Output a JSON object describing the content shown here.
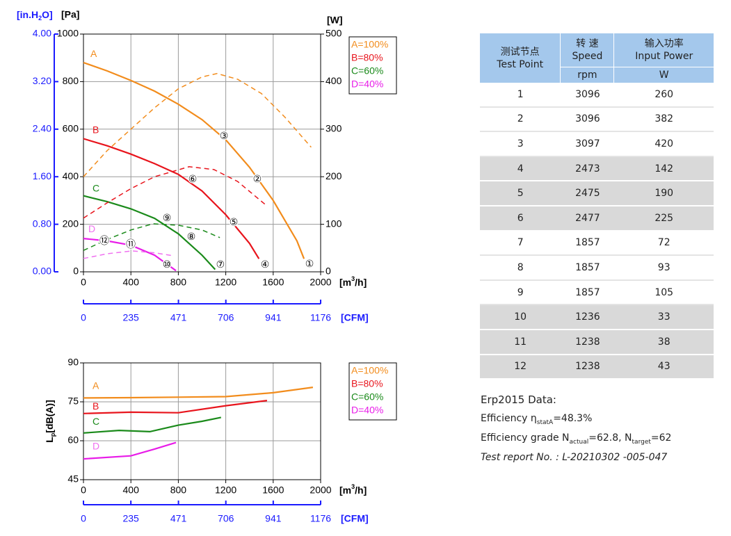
{
  "chart_data": [
    {
      "type": "line",
      "xlim": [
        0,
        2000
      ],
      "xticks": [
        0,
        400,
        800,
        1200,
        1600,
        2000
      ],
      "x_label": {
        "pre": "[m",
        "sup": "3",
        "post": "/h]"
      },
      "x2lim": [
        0,
        1176
      ],
      "x2ticks": [
        0,
        235,
        471,
        706,
        941,
        1176
      ],
      "x2_label": "[CFM]",
      "ylim": [
        0,
        1000
      ],
      "yticks": [
        0,
        200,
        400,
        600,
        800,
        1000
      ],
      "y_label": "[Pa]",
      "y_alt_lim": [
        0,
        4
      ],
      "y_alt_ticks": [
        {
          "value": 0,
          "label": "0.00"
        },
        {
          "value": 0.8,
          "label": "0.80"
        },
        {
          "value": 1.6,
          "label": "1.60"
        },
        {
          "value": 2.4,
          "label": "2.40"
        },
        {
          "value": 3.2,
          "label": "3.20"
        },
        {
          "value": 4,
          "label": "4.00"
        }
      ],
      "y_alt_label": {
        "pre": "[in.H",
        "sub": "2",
        "post": "O]"
      },
      "y2lim": [
        0,
        500
      ],
      "y2ticks": [
        0,
        100,
        200,
        300,
        400,
        500
      ],
      "y2_label": "[W]",
      "grid": true,
      "legend": "outside-right",
      "series": [
        {
          "name": "A=100%",
          "color": "#f28c1c",
          "x": [
            0,
            200,
            400,
            600,
            800,
            1000,
            1200,
            1400,
            1600,
            1800,
            1860
          ],
          "values": [
            880,
            845,
            805,
            760,
            705,
            640,
            555,
            440,
            300,
            130,
            55
          ]
        },
        {
          "name": "B=80%",
          "color": "#e8141c",
          "x": [
            0,
            200,
            400,
            600,
            800,
            1000,
            1200,
            1400,
            1480
          ],
          "values": [
            560,
            530,
            495,
            455,
            410,
            340,
            240,
            120,
            55
          ]
        },
        {
          "name": "C=60%",
          "color": "#1a8a1a",
          "x": [
            0,
            200,
            400,
            600,
            800,
            1000,
            1110
          ],
          "values": [
            320,
            295,
            265,
            225,
            160,
            70,
            10
          ]
        },
        {
          "name": "D=40%",
          "color": "#e81ce8",
          "x": [
            0,
            200,
            400,
            600,
            780
          ],
          "values": [
            140,
            130,
            112,
            70,
            5
          ]
        },
        {
          "color": "#f28c1c",
          "axis": "y2",
          "dashed": true,
          "x": [
            0,
            200,
            400,
            600,
            800,
            1000,
            1126,
            1300,
            1500,
            1700,
            1920
          ],
          "values": [
            200,
            255,
            300,
            345,
            385,
            410,
            417,
            405,
            375,
            325,
            262
          ]
        },
        {
          "color": "#e8141c",
          "axis": "y2",
          "dashed": true,
          "x": [
            0,
            200,
            400,
            600,
            891,
            1100,
            1300,
            1540
          ],
          "values": [
            113,
            145,
            175,
            200,
            221,
            215,
            190,
            140
          ]
        },
        {
          "color": "#1a8a1a",
          "axis": "y2",
          "dashed": true,
          "x": [
            0,
            200,
            400,
            587,
            800,
            1000,
            1150
          ],
          "values": [
            45,
            68,
            88,
            101,
            98,
            88,
            72
          ]
        },
        {
          "color": "#f070f0",
          "axis": "y2",
          "dashed": true,
          "x": [
            0,
            200,
            410,
            600,
            750
          ],
          "values": [
            28,
            38,
            44,
            40,
            34
          ]
        }
      ],
      "curve_labels": [
        {
          "text": "A",
          "color": "#f28c1c",
          "x": 59,
          "y": 915
        },
        {
          "text": "B",
          "color": "#e8141c",
          "x": 76,
          "y": 594
        },
        {
          "text": "C",
          "color": "#1a8a1a",
          "x": 76,
          "y": 348
        },
        {
          "text": "D",
          "color": "#f070f0",
          "x": 41,
          "y": 178
        }
      ],
      "annotations": [
        {
          "text": "①",
          "x": 1906,
          "y": 32
        },
        {
          "text": "②",
          "x": 1466,
          "y": 389
        },
        {
          "text": "③",
          "x": 1185,
          "y": 570
        },
        {
          "text": "④",
          "x": 1531,
          "y": 29
        },
        {
          "text": "⑤",
          "x": 1267,
          "y": 208
        },
        {
          "text": "⑥",
          "x": 921,
          "y": 389
        },
        {
          "text": "⑦",
          "x": 1155,
          "y": 29
        },
        {
          "text": "⑧",
          "x": 909,
          "y": 146
        },
        {
          "text": "⑨",
          "x": 704,
          "y": 225
        },
        {
          "text": "⑩",
          "x": 704,
          "y": 29
        },
        {
          "text": "⑪",
          "x": 399,
          "y": 114
        },
        {
          "text": "⑫",
          "x": 176,
          "y": 129
        }
      ]
    },
    {
      "type": "line",
      "xlim": [
        0,
        2000
      ],
      "xticks": [
        0,
        400,
        800,
        1200,
        1600,
        2000
      ],
      "x_label": {
        "pre": "[m",
        "sup": "3",
        "post": "/h]"
      },
      "x2lim": [
        0,
        1176
      ],
      "x2ticks": [
        0,
        235,
        471,
        706,
        941,
        1176
      ],
      "x2_label": "[CFM]",
      "ylim": [
        45,
        90
      ],
      "yticks": [
        45,
        60,
        75,
        90
      ],
      "y_label": {
        "pre": "L",
        "sub": "p",
        "post": "[dB(A)]"
      },
      "grid": true,
      "legend": "outside-right",
      "series": [
        {
          "name": "A=100%",
          "color": "#f28c1c",
          "x": [
            0,
            400,
            800,
            1200,
            1600,
            1935
          ],
          "values": [
            76.5,
            76.6,
            76.8,
            77,
            78.5,
            80.6
          ]
        },
        {
          "name": "B=80%",
          "color": "#e8141c",
          "x": [
            0,
            400,
            800,
            1200,
            1548
          ],
          "values": [
            70.5,
            71,
            70.8,
            73.5,
            75.5
          ]
        },
        {
          "name": "C=60%",
          "color": "#1a8a1a",
          "x": [
            0,
            300,
            560,
            800,
            1000,
            1160
          ],
          "values": [
            63,
            64,
            63.5,
            66,
            67.5,
            69
          ]
        },
        {
          "name": "D=40%",
          "color": "#e81ce8",
          "x": [
            0,
            400,
            600,
            780
          ],
          "values": [
            53,
            54.2,
            56.8,
            59.3
          ]
        }
      ],
      "curve_labels": [
        {
          "text": "A",
          "color": "#f28c1c",
          "x": 76,
          "y": 80.9
        },
        {
          "text": "B",
          "color": "#e8141c",
          "x": 76,
          "y": 73.1
        },
        {
          "text": "C",
          "color": "#1a8a1a",
          "x": 76,
          "y": 67.2
        },
        {
          "text": "D",
          "color": "#f070f0",
          "x": 76,
          "y": 57.6
        }
      ]
    }
  ],
  "table": {
    "header": {
      "point": [
        "测试节点",
        "Test Point"
      ],
      "speed": [
        "转 速",
        "Speed",
        "rpm"
      ],
      "power": [
        "输入功率",
        "Input Power",
        "W"
      ]
    },
    "rows": [
      [
        1,
        3096,
        260
      ],
      [
        2,
        3096,
        382
      ],
      [
        3,
        3097,
        420
      ],
      [
        4,
        2473,
        142
      ],
      [
        5,
        2475,
        190
      ],
      [
        6,
        2477,
        225
      ],
      [
        7,
        1857,
        72
      ],
      [
        8,
        1857,
        93
      ],
      [
        9,
        1857,
        105
      ],
      [
        10,
        1236,
        33
      ],
      [
        11,
        1238,
        38
      ],
      [
        12,
        1238,
        43
      ]
    ]
  },
  "erp": {
    "title": "Erp2015  Data:",
    "efficiency": {
      "pre": "Efficiency η",
      "sub": "statA",
      "post": "=48.3%"
    },
    "grade": {
      "pre": "Efficiency grade N",
      "sub": "actual",
      "mid": "=62.8, N",
      "sub2": "target",
      "post": "=62"
    },
    "report": "Test report No. : L-20210302 -005-047"
  }
}
